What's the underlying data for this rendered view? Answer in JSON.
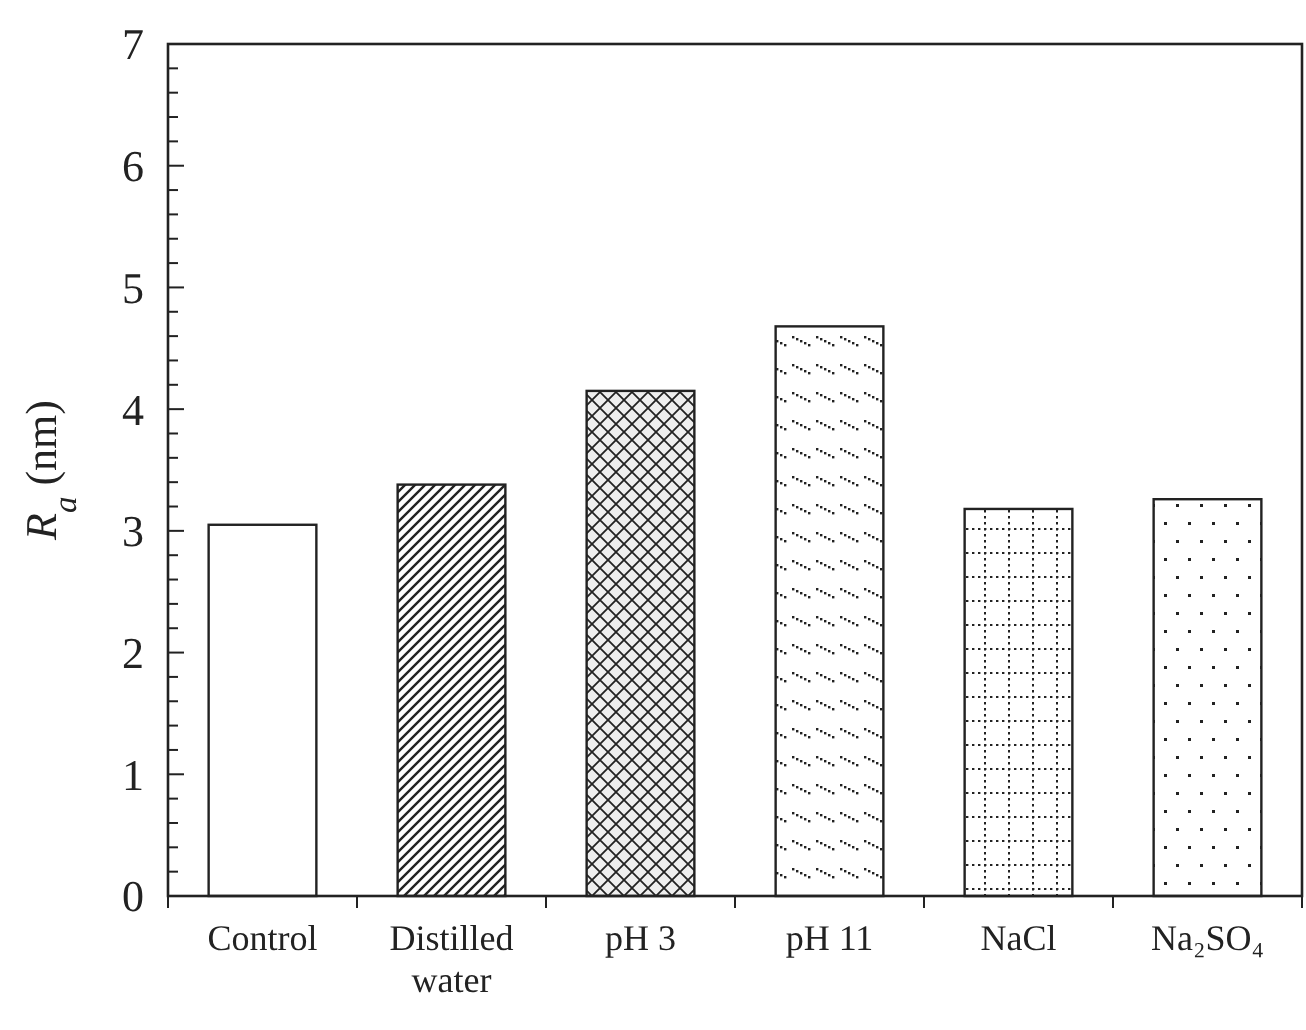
{
  "chart_data": {
    "type": "bar",
    "ylabel": "R$_{a}$ (nm)",
    "categories": [
      "Control",
      "Distilled water",
      "pH 3",
      "pH 11",
      "NaCl",
      "Na₂SO₄"
    ],
    "values": [
      3.05,
      3.38,
      4.15,
      4.68,
      3.18,
      3.26
    ],
    "ylim": [
      0,
      7
    ],
    "yticks": [
      0,
      {
        "value": 0.2,
        "label": null
      },
      {
        "value": 0.4,
        "label": null
      },
      {
        "value": 0.6,
        "label": null
      },
      {
        "value": 0.8,
        "label": null
      },
      1,
      {
        "value": 1.2,
        "label": null
      },
      {
        "value": 1.4,
        "label": null
      },
      {
        "value": 1.6,
        "label": null
      },
      {
        "value": 1.8,
        "label": null
      },
      2,
      {
        "value": 2.2,
        "label": null
      },
      {
        "value": 2.4,
        "label": null
      },
      {
        "value": 2.6,
        "label": null
      },
      {
        "value": 2.8,
        "label": null
      },
      3,
      {
        "value": 3.2,
        "label": null
      },
      {
        "value": 3.4,
        "label": null
      },
      {
        "value": 3.6,
        "label": null
      },
      {
        "value": 3.8,
        "label": null
      },
      4,
      {
        "value": 4.2,
        "label": null
      },
      {
        "value": 4.4,
        "label": null
      },
      {
        "value": 4.6,
        "label": null
      },
      {
        "value": 4.8,
        "label": null
      },
      5,
      {
        "value": 5.2,
        "label": null
      },
      {
        "value": 5.4,
        "label": null
      },
      {
        "value": 5.6,
        "label": null
      },
      {
        "value": 5.8,
        "label": null
      },
      6,
      {
        "value": 6.2,
        "label": null
      },
      {
        "value": 6.4,
        "label": null
      },
      {
        "value": 6.6,
        "label": null
      },
      {
        "value": 6.8,
        "label": null
      },
      7
    ],
    "grid": false
  }
}
